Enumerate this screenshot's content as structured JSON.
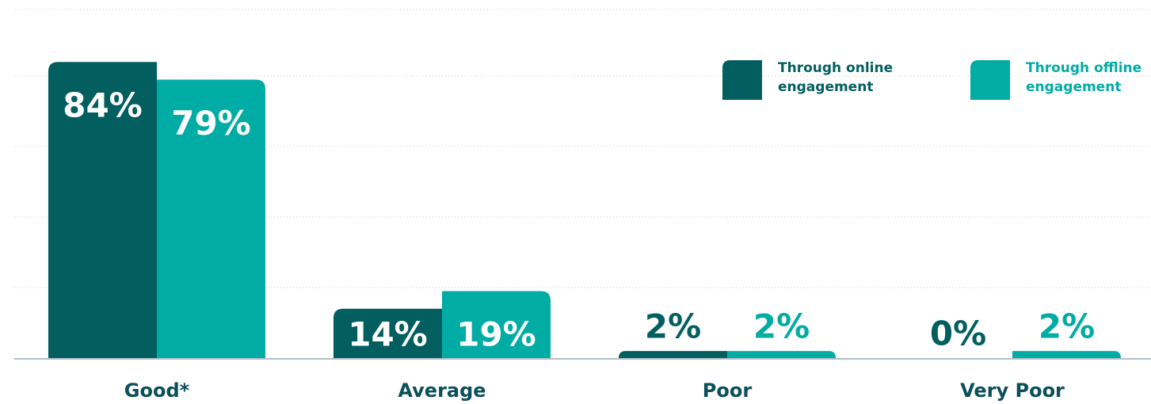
{
  "chart_data": {
    "type": "bar",
    "categories": [
      "Good*",
      "Average",
      "Poor",
      "Very Poor"
    ],
    "series": [
      {
        "name": "Through online engagement",
        "color": "#035e60",
        "values": [
          84,
          14,
          2,
          0
        ],
        "value_labels": [
          "84%",
          "14%",
          "2%",
          "0%"
        ]
      },
      {
        "name": "Through offline engagement",
        "color": "#00aca4",
        "values": [
          79,
          19,
          2,
          2
        ],
        "value_labels": [
          "79%",
          "19%",
          "2%",
          "2%"
        ]
      }
    ],
    "ylim": [
      0,
      100
    ],
    "yticks": [
      0,
      20,
      40,
      60,
      80,
      100
    ],
    "grid": true,
    "legend": "top-right"
  }
}
